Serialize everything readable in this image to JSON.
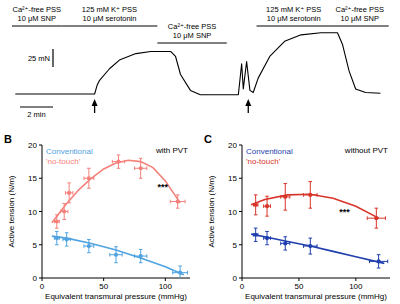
{
  "chart_data": [
    {
      "type": "line",
      "tick_labels": false,
      "color": "#000000",
      "xlim": [
        -2,
        21
      ],
      "ylim": [
        -40,
        125
      ],
      "x": [
        -1.8,
        0,
        3.0,
        3.15,
        3.3,
        3.9,
        4.5,
        5.5,
        6.4,
        7.6,
        7.9,
        8.2,
        8.8,
        9.4,
        11.7,
        11.9,
        12.0,
        12.2,
        12.4,
        12.6,
        12.9,
        13.6,
        14.5,
        15.5,
        16.7,
        17.7,
        18.0,
        18.4,
        18.8,
        19.4,
        20.3
      ],
      "values": [
        3,
        3,
        3,
        15,
        22,
        38,
        50,
        59,
        62,
        62,
        55,
        30,
        8,
        2,
        2,
        45,
        10,
        48,
        8,
        5,
        25,
        55,
        76,
        85,
        88,
        88,
        72,
        35,
        10,
        5,
        4
      ],
      "treatments": [
        {
          "lines": [
            "Ca²⁺-free PSS",
            "10 μM SNP"
          ],
          "start": -2,
          "end": 1.0
        },
        {
          "lines": [
            "125 mM K⁺ PSS",
            "10 μM serotonin"
          ],
          "start": 1.0,
          "end": 6.8
        },
        {
          "lines": [
            "Ca²⁺-free PSS",
            "10 μM SNP"
          ],
          "start": 6.8,
          "end": 11.0
        },
        {
          "lines": [
            "125 mM K⁺ PSS",
            "10 μM serotonin"
          ],
          "start": 12.8,
          "end": 17.3
        },
        {
          "lines": [
            "Ca²⁺-free PSS",
            "10 μM SNP"
          ],
          "start": 17.3,
          "end": 20.8
        }
      ],
      "arrows": [
        3.0,
        12.3
      ],
      "scale_bars": [
        {
          "axis": "y",
          "value": 25,
          "label": "25 mN"
        },
        {
          "axis": "x",
          "value": 2,
          "label": "2 min"
        }
      ]
    },
    {
      "type": "scatter",
      "panel": "B",
      "subtitle": "with PVT",
      "x_label": "Equivalent transmural pressure (mmHg)",
      "y_label": "Active tension (N/m)",
      "xlim": [
        0,
        120
      ],
      "ylim": [
        0,
        20
      ],
      "xticks": [
        0,
        50,
        100
      ],
      "yticks": [
        0,
        5,
        10,
        15,
        20
      ],
      "grid": false,
      "legend": "top-left",
      "marker": "circle",
      "series": [
        {
          "name": "Conventional",
          "color": "#4fa3e0",
          "x": [
            12,
            20,
            38,
            60,
            80,
            112
          ],
          "values": [
            6,
            5.8,
            4.8,
            3.5,
            3.3,
            0.8
          ],
          "xerr": [
            2,
            3,
            4,
            5,
            5,
            6
          ],
          "yerr": [
            1,
            1,
            1,
            1.2,
            1,
            1
          ],
          "fit": {
            "x": [
              8,
              20,
              40,
              60,
              80,
              100,
              115
            ],
            "y": [
              6.3,
              6.0,
              5.2,
              4.2,
              3.0,
              1.7,
              0.5
            ]
          }
        },
        {
          "name": "'no-touch'",
          "color": "#f4817a",
          "x": [
            12,
            18,
            22,
            38,
            62,
            80,
            110
          ],
          "values": [
            8.5,
            10,
            12.8,
            15,
            17.5,
            16.5,
            11.5
          ],
          "xerr": [
            2,
            3,
            3,
            4,
            5,
            5,
            6
          ],
          "yerr": [
            1,
            1.2,
            1.5,
            1.5,
            1,
            1.5,
            1
          ],
          "fit": {
            "x": [
              8,
              20,
              30,
              40,
              50,
              60,
              70,
              80,
              90,
              100,
              112
            ],
            "y": [
              8.3,
              11.2,
              13.3,
              15.0,
              16.4,
              17.3,
              17.7,
              17.5,
              16.6,
              14.6,
              11.3
            ]
          }
        }
      ],
      "annotations": [
        {
          "text": "***",
          "x": 98,
          "y": 13.2
        }
      ]
    },
    {
      "type": "scatter",
      "panel": "C",
      "subtitle": "without PVT",
      "x_label": "Equivalent transmural pressure (mmHg)",
      "y_label": "Active tension (N/m)",
      "xlim": [
        0,
        130
      ],
      "ylim": [
        0,
        20
      ],
      "xticks": [
        0,
        50,
        100
      ],
      "yticks": [
        0,
        5,
        10,
        15,
        20
      ],
      "grid": false,
      "legend": "top-left",
      "marker": "circle",
      "series": [
        {
          "name": "Conventional",
          "color": "#1f3fae",
          "x": [
            12,
            22,
            38,
            60,
            120
          ],
          "values": [
            6.5,
            6,
            5.2,
            4.8,
            2.5
          ],
          "xerr": [
            2,
            3,
            4,
            6,
            8
          ],
          "yerr": [
            1,
            1,
            1,
            1.2,
            1
          ],
          "fit": {
            "x": [
              8,
              20,
              40,
              60,
              80,
              100,
              125
            ],
            "y": [
              6.6,
              6.2,
              5.5,
              4.8,
              4.0,
              3.2,
              2.2
            ]
          }
        },
        {
          "name": "'no-touch'",
          "color": "#d8352a",
          "x": [
            12,
            22,
            38,
            60,
            118
          ],
          "values": [
            11,
            10.8,
            12.2,
            12.5,
            9
          ],
          "xerr": [
            2,
            3,
            4,
            6,
            8
          ],
          "yerr": [
            1.5,
            1.5,
            2,
            2,
            1.5
          ],
          "fit": {
            "x": [
              8,
              20,
              40,
              60,
              80,
              100,
              120
            ],
            "y": [
              11,
              11.8,
              12.5,
              12.6,
              12,
              10.8,
              9
            ]
          }
        }
      ],
      "annotations": [
        {
          "text": "***",
          "x": 90,
          "y": 9.5
        }
      ]
    }
  ]
}
